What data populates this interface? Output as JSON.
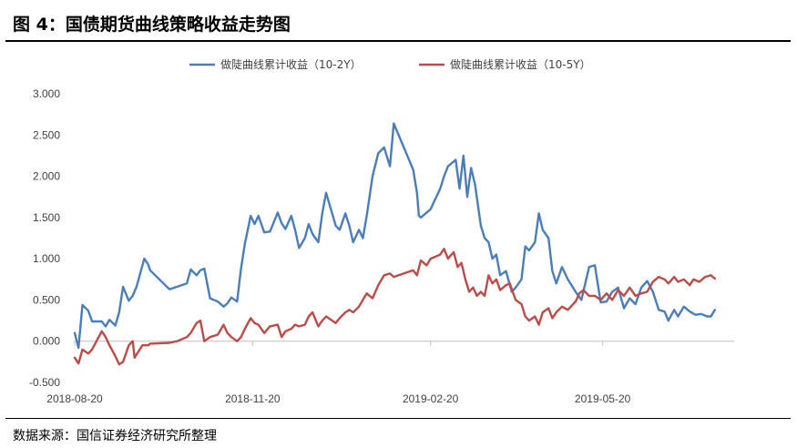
{
  "header": {
    "title": "图 4：国债期货曲线策略收益走势图"
  },
  "footer": {
    "source": "数据来源：国信证券经济研究所整理"
  },
  "chart_data": {
    "type": "line",
    "title": "",
    "xlabel": "",
    "ylabel": "",
    "x_ticks": [
      "2018-08-20",
      "2018-11-20",
      "2019-02-20",
      "2019-05-20"
    ],
    "y_ticks": [
      "-0.500",
      "0.000",
      "0.500",
      "1.000",
      "1.500",
      "2.000",
      "2.500",
      "3.000"
    ],
    "ylim": [
      -0.5,
      3.0
    ],
    "xlim": [
      "2018-08-20",
      "2019-07-27"
    ],
    "grid": false,
    "legend_position": "top",
    "series": [
      {
        "name": "做陡曲线累计收益（10-2Y）",
        "color": "#4a7ebb",
        "points": [
          [
            "2018-08-20",
            0.1
          ],
          [
            "2018-08-22",
            -0.08
          ],
          [
            "2018-08-24",
            0.44
          ],
          [
            "2018-08-27",
            0.37
          ],
          [
            "2018-08-29",
            0.24
          ],
          [
            "2018-09-03",
            0.24
          ],
          [
            "2018-09-05",
            0.18
          ],
          [
            "2018-09-07",
            0.26
          ],
          [
            "2018-09-10",
            0.19
          ],
          [
            "2018-09-12",
            0.35
          ],
          [
            "2018-09-14",
            0.66
          ],
          [
            "2018-09-17",
            0.49
          ],
          [
            "2018-09-19",
            0.55
          ],
          [
            "2018-09-21",
            0.66
          ],
          [
            "2018-09-25",
            1.0
          ],
          [
            "2018-09-27",
            0.93
          ],
          [
            "2018-09-28",
            0.86
          ],
          [
            "2018-10-08",
            0.63
          ],
          [
            "2018-10-12",
            0.66
          ],
          [
            "2018-10-17",
            0.7
          ],
          [
            "2018-10-19",
            0.87
          ],
          [
            "2018-10-22",
            0.8
          ],
          [
            "2018-10-24",
            0.86
          ],
          [
            "2018-10-26",
            0.88
          ],
          [
            "2018-10-29",
            0.52
          ],
          [
            "2018-11-02",
            0.48
          ],
          [
            "2018-11-05",
            0.42
          ],
          [
            "2018-11-07",
            0.46
          ],
          [
            "2018-11-09",
            0.53
          ],
          [
            "2018-11-12",
            0.48
          ],
          [
            "2018-11-14",
            0.88
          ],
          [
            "2018-11-16",
            1.18
          ],
          [
            "2018-11-19",
            1.52
          ],
          [
            "2018-11-21",
            1.42
          ],
          [
            "2018-11-23",
            1.52
          ],
          [
            "2018-11-26",
            1.32
          ],
          [
            "2018-11-29",
            1.33
          ],
          [
            "2018-12-03",
            1.56
          ],
          [
            "2018-12-05",
            1.43
          ],
          [
            "2018-12-07",
            1.36
          ],
          [
            "2018-12-10",
            1.52
          ],
          [
            "2018-12-12",
            1.35
          ],
          [
            "2018-12-14",
            1.13
          ],
          [
            "2018-12-17",
            1.25
          ],
          [
            "2018-12-19",
            1.42
          ],
          [
            "2018-12-21",
            1.3
          ],
          [
            "2018-12-24",
            1.2
          ],
          [
            "2018-12-26",
            1.55
          ],
          [
            "2018-12-28",
            1.8
          ],
          [
            "2019-01-02",
            1.4
          ],
          [
            "2019-01-04",
            1.35
          ],
          [
            "2019-01-07",
            1.55
          ],
          [
            "2019-01-09",
            1.4
          ],
          [
            "2019-01-11",
            1.2
          ],
          [
            "2019-01-14",
            1.35
          ],
          [
            "2019-01-16",
            1.25
          ],
          [
            "2019-01-18",
            1.52
          ],
          [
            "2019-01-21",
            2.0
          ],
          [
            "2019-01-24",
            2.28
          ],
          [
            "2019-01-27",
            2.35
          ],
          [
            "2019-01-30",
            2.12
          ],
          [
            "2019-02-01",
            2.64
          ],
          [
            "2019-02-11",
            2.08
          ],
          [
            "2019-02-13",
            1.8
          ],
          [
            "2019-02-14",
            1.52
          ],
          [
            "2019-02-15",
            1.5
          ],
          [
            "2019-02-20",
            1.6
          ],
          [
            "2019-02-22",
            1.7
          ],
          [
            "2019-02-25",
            1.85
          ],
          [
            "2019-02-27",
            2.0
          ],
          [
            "2019-03-01",
            2.12
          ],
          [
            "2019-03-05",
            2.2
          ],
          [
            "2019-03-07",
            1.85
          ],
          [
            "2019-03-09",
            2.25
          ],
          [
            "2019-03-11",
            1.75
          ],
          [
            "2019-03-13",
            2.1
          ],
          [
            "2019-03-15",
            1.9
          ],
          [
            "2019-03-18",
            1.4
          ],
          [
            "2019-03-20",
            1.25
          ],
          [
            "2019-03-22",
            1.2
          ],
          [
            "2019-03-24",
            1.0
          ],
          [
            "2019-03-26",
            1.05
          ],
          [
            "2019-03-28",
            0.8
          ],
          [
            "2019-03-31",
            0.85
          ],
          [
            "2019-04-03",
            0.6
          ],
          [
            "2019-04-05",
            0.65
          ],
          [
            "2019-04-08",
            0.75
          ],
          [
            "2019-04-10",
            1.15
          ],
          [
            "2019-04-12",
            1.1
          ],
          [
            "2019-04-15",
            1.2
          ],
          [
            "2019-04-17",
            1.55
          ],
          [
            "2019-04-19",
            1.35
          ],
          [
            "2019-04-22",
            1.25
          ],
          [
            "2019-04-24",
            0.85
          ],
          [
            "2019-04-26",
            0.7
          ],
          [
            "2019-04-29",
            0.9
          ],
          [
            "2019-05-02",
            0.75
          ],
          [
            "2019-05-06",
            0.6
          ],
          [
            "2019-05-09",
            0.5
          ],
          [
            "2019-05-13",
            0.9
          ],
          [
            "2019-05-16",
            0.92
          ],
          [
            "2019-05-19",
            0.47
          ],
          [
            "2019-05-22",
            0.48
          ],
          [
            "2019-05-25",
            0.6
          ],
          [
            "2019-05-28",
            0.65
          ],
          [
            "2019-05-31",
            0.4
          ],
          [
            "2019-06-03",
            0.52
          ],
          [
            "2019-06-06",
            0.45
          ],
          [
            "2019-06-09",
            0.65
          ],
          [
            "2019-06-12",
            0.73
          ],
          [
            "2019-06-15",
            0.6
          ],
          [
            "2019-06-18",
            0.38
          ],
          [
            "2019-06-21",
            0.36
          ],
          [
            "2019-06-23",
            0.25
          ],
          [
            "2019-06-26",
            0.38
          ],
          [
            "2019-06-28",
            0.3
          ],
          [
            "2019-07-01",
            0.42
          ],
          [
            "2019-07-04",
            0.36
          ],
          [
            "2019-07-07",
            0.32
          ],
          [
            "2019-07-10",
            0.33
          ],
          [
            "2019-07-13",
            0.3
          ],
          [
            "2019-07-15",
            0.3
          ],
          [
            "2019-07-17",
            0.38
          ]
        ]
      },
      {
        "name": "做陡曲线累计收益（10-5Y）",
        "color": "#be4b48",
        "points": [
          [
            "2018-08-20",
            -0.2
          ],
          [
            "2018-08-22",
            -0.27
          ],
          [
            "2018-08-24",
            -0.1
          ],
          [
            "2018-08-27",
            -0.15
          ],
          [
            "2018-08-29",
            -0.1
          ],
          [
            "2018-09-03",
            0.12
          ],
          [
            "2018-09-05",
            0.05
          ],
          [
            "2018-09-07",
            -0.05
          ],
          [
            "2018-09-10",
            -0.18
          ],
          [
            "2018-09-12",
            -0.28
          ],
          [
            "2018-09-14",
            -0.25
          ],
          [
            "2018-09-17",
            -0.05
          ],
          [
            "2018-09-19",
            0.0
          ],
          [
            "2018-09-20",
            -0.2
          ],
          [
            "2018-09-24",
            -0.05
          ],
          [
            "2018-09-27",
            -0.05
          ],
          [
            "2018-09-28",
            -0.03
          ],
          [
            "2018-10-08",
            -0.02
          ],
          [
            "2018-10-12",
            0.0
          ],
          [
            "2018-10-17",
            0.05
          ],
          [
            "2018-10-19",
            0.1
          ],
          [
            "2018-10-22",
            0.22
          ],
          [
            "2018-10-24",
            0.25
          ],
          [
            "2018-10-26",
            0.0
          ],
          [
            "2018-10-29",
            0.05
          ],
          [
            "2018-11-02",
            0.08
          ],
          [
            "2018-11-05",
            0.2
          ],
          [
            "2018-11-07",
            0.1
          ],
          [
            "2018-11-09",
            0.05
          ],
          [
            "2018-11-12",
            0.0
          ],
          [
            "2018-11-14",
            0.05
          ],
          [
            "2018-11-16",
            0.15
          ],
          [
            "2018-11-19",
            0.28
          ],
          [
            "2018-11-21",
            0.22
          ],
          [
            "2018-11-23",
            0.2
          ],
          [
            "2018-11-26",
            0.1
          ],
          [
            "2018-11-29",
            0.18
          ],
          [
            "2018-12-03",
            0.2
          ],
          [
            "2018-12-05",
            0.05
          ],
          [
            "2018-12-07",
            0.12
          ],
          [
            "2018-12-10",
            0.15
          ],
          [
            "2018-12-12",
            0.2
          ],
          [
            "2018-12-14",
            0.18
          ],
          [
            "2018-12-17",
            0.2
          ],
          [
            "2018-12-19",
            0.3
          ],
          [
            "2018-12-21",
            0.35
          ],
          [
            "2018-12-24",
            0.18
          ],
          [
            "2018-12-26",
            0.25
          ],
          [
            "2018-12-28",
            0.3
          ],
          [
            "2019-01-02",
            0.22
          ],
          [
            "2019-01-04",
            0.28
          ],
          [
            "2019-01-07",
            0.35
          ],
          [
            "2019-01-09",
            0.38
          ],
          [
            "2019-01-11",
            0.35
          ],
          [
            "2019-01-14",
            0.42
          ],
          [
            "2019-01-16",
            0.5
          ],
          [
            "2019-01-18",
            0.58
          ],
          [
            "2019-01-21",
            0.52
          ],
          [
            "2019-01-24",
            0.68
          ],
          [
            "2019-01-27",
            0.8
          ],
          [
            "2019-01-30",
            0.82
          ],
          [
            "2019-02-01",
            0.78
          ],
          [
            "2019-02-11",
            0.86
          ],
          [
            "2019-02-13",
            0.8
          ],
          [
            "2019-02-15",
            0.98
          ],
          [
            "2019-02-18",
            0.92
          ],
          [
            "2019-02-20",
            1.0
          ],
          [
            "2019-02-22",
            1.02
          ],
          [
            "2019-02-25",
            1.05
          ],
          [
            "2019-02-27",
            1.12
          ],
          [
            "2019-03-01",
            1.0
          ],
          [
            "2019-03-04",
            1.08
          ],
          [
            "2019-03-06",
            0.9
          ],
          [
            "2019-03-08",
            0.95
          ],
          [
            "2019-03-10",
            0.75
          ],
          [
            "2019-03-12",
            0.6
          ],
          [
            "2019-03-14",
            0.65
          ],
          [
            "2019-03-16",
            0.55
          ],
          [
            "2019-03-18",
            0.6
          ],
          [
            "2019-03-20",
            0.55
          ],
          [
            "2019-03-22",
            0.8
          ],
          [
            "2019-03-24",
            0.7
          ],
          [
            "2019-03-26",
            0.75
          ],
          [
            "2019-03-28",
            0.62
          ],
          [
            "2019-03-31",
            0.68
          ],
          [
            "2019-04-02",
            0.7
          ],
          [
            "2019-04-05",
            0.5
          ],
          [
            "2019-04-08",
            0.45
          ],
          [
            "2019-04-10",
            0.3
          ],
          [
            "2019-04-12",
            0.25
          ],
          [
            "2019-04-15",
            0.3
          ],
          [
            "2019-04-17",
            0.2
          ],
          [
            "2019-04-19",
            0.35
          ],
          [
            "2019-04-22",
            0.4
          ],
          [
            "2019-04-24",
            0.28
          ],
          [
            "2019-04-26",
            0.35
          ],
          [
            "2019-04-29",
            0.42
          ],
          [
            "2019-05-02",
            0.38
          ],
          [
            "2019-05-06",
            0.48
          ],
          [
            "2019-05-08",
            0.58
          ],
          [
            "2019-05-10",
            0.62
          ],
          [
            "2019-05-13",
            0.55
          ],
          [
            "2019-05-16",
            0.55
          ],
          [
            "2019-05-19",
            0.5
          ],
          [
            "2019-05-22",
            0.58
          ],
          [
            "2019-05-25",
            0.5
          ],
          [
            "2019-05-28",
            0.62
          ],
          [
            "2019-05-31",
            0.55
          ],
          [
            "2019-06-03",
            0.65
          ],
          [
            "2019-06-06",
            0.55
          ],
          [
            "2019-06-09",
            0.58
          ],
          [
            "2019-06-12",
            0.6
          ],
          [
            "2019-06-15",
            0.72
          ],
          [
            "2019-06-18",
            0.78
          ],
          [
            "2019-06-21",
            0.75
          ],
          [
            "2019-06-23",
            0.7
          ],
          [
            "2019-06-26",
            0.78
          ],
          [
            "2019-06-28",
            0.72
          ],
          [
            "2019-07-01",
            0.75
          ],
          [
            "2019-07-04",
            0.68
          ],
          [
            "2019-07-06",
            0.75
          ],
          [
            "2019-07-09",
            0.72
          ],
          [
            "2019-07-12",
            0.78
          ],
          [
            "2019-07-15",
            0.8
          ],
          [
            "2019-07-17",
            0.76
          ]
        ]
      }
    ]
  }
}
